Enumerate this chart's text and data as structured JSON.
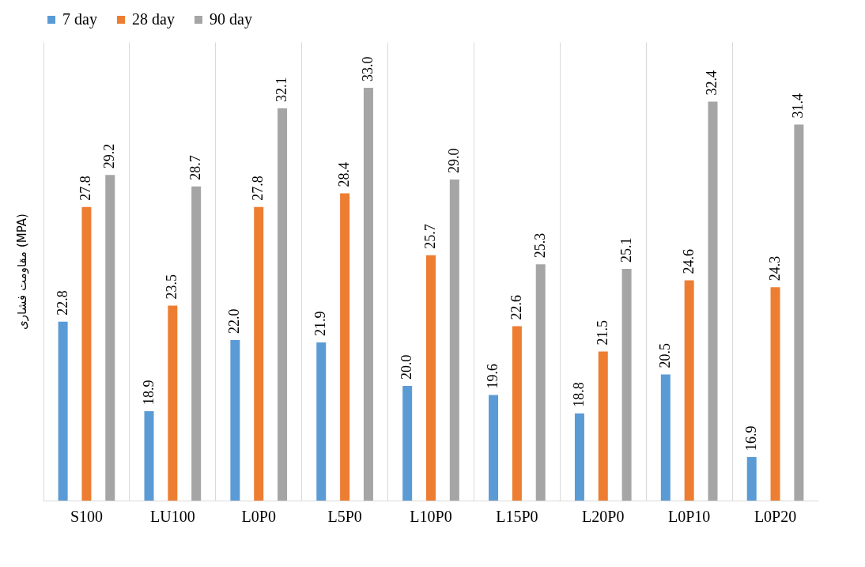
{
  "chart_data": {
    "type": "bar",
    "ylabel": "مقاومت فشاری (MPA)",
    "categories": [
      "S100",
      "LU100",
      "L0P0",
      "L5P0",
      "L10P0",
      "L15P0",
      "L20P0",
      "L0P10",
      "L0P20"
    ],
    "series": [
      {
        "name": "7 day",
        "color": "#5b9bd5",
        "values": [
          22.8,
          18.9,
          22.0,
          21.9,
          20.0,
          19.6,
          18.8,
          20.5,
          16.9
        ],
        "value_labels": [
          "22.8",
          "18.9",
          "22.0",
          "21.9",
          "20.0",
          "19.6",
          "18.8",
          "20.5",
          "16.9"
        ]
      },
      {
        "name": "28 day",
        "color": "#ed7d31",
        "values": [
          27.8,
          23.5,
          27.8,
          28.4,
          25.7,
          22.6,
          21.5,
          24.6,
          24.3
        ],
        "value_labels": [
          "27.8",
          "23.5",
          "27.8",
          "28.4",
          "25.7",
          "22.6",
          "21.5",
          "24.6",
          "24.3"
        ]
      },
      {
        "name": "90 day",
        "color": "#a5a5a5",
        "values": [
          29.2,
          28.7,
          32.1,
          33.0,
          29.0,
          25.3,
          25.1,
          32.4,
          31.4
        ],
        "value_labels": [
          "29.2",
          "28.7",
          "32.1",
          "33.0",
          "29.0",
          "25.3",
          "25.1",
          "32.4",
          "31.4"
        ]
      }
    ],
    "ylim": [
      15,
      35
    ],
    "legend": "top",
    "grid": "x",
    "tick_labels": "x"
  }
}
